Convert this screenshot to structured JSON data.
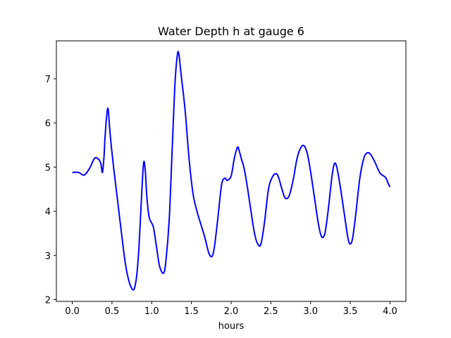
{
  "chart_data": {
    "type": "line",
    "title": "Water Depth h at gauge 6",
    "xlabel": "hours",
    "ylabel": "",
    "xlim": [
      -0.2,
      4.2
    ],
    "ylim": [
      1.96,
      7.86
    ],
    "xticks": [
      0.0,
      0.5,
      1.0,
      1.5,
      2.0,
      2.5,
      3.0,
      3.5,
      4.0
    ],
    "xtick_labels": [
      "0.0",
      "0.5",
      "1.0",
      "1.5",
      "2.0",
      "2.5",
      "3.0",
      "3.5",
      "4.0"
    ],
    "yticks": [
      2,
      3,
      4,
      5,
      6,
      7
    ],
    "ytick_labels": [
      "2",
      "3",
      "4",
      "5",
      "6",
      "7"
    ],
    "grid": false,
    "legend": "none",
    "series": [
      {
        "color": "#0000ff",
        "x": [
          0.0,
          0.08,
          0.15,
          0.22,
          0.28,
          0.33,
          0.36,
          0.38,
          0.4,
          0.41,
          0.43,
          0.45,
          0.47,
          0.49,
          0.52,
          0.57,
          0.62,
          0.67,
          0.72,
          0.77,
          0.8,
          0.82,
          0.84,
          0.86,
          0.88,
          0.9,
          0.92,
          0.94,
          0.97,
          1.02,
          1.06,
          1.1,
          1.15,
          1.18,
          1.22,
          1.26,
          1.29,
          1.32,
          1.34,
          1.37,
          1.42,
          1.47,
          1.52,
          1.57,
          1.62,
          1.67,
          1.72,
          1.76,
          1.79,
          1.83,
          1.88,
          1.92,
          1.95,
          2.0,
          2.04,
          2.08,
          2.1,
          2.13,
          2.16,
          2.2,
          2.25,
          2.3,
          2.35,
          2.38,
          2.42,
          2.47,
          2.52,
          2.57,
          2.6,
          2.64,
          2.68,
          2.73,
          2.78,
          2.83,
          2.88,
          2.92,
          2.96,
          3.0,
          3.05,
          3.1,
          3.14,
          3.18,
          3.22,
          3.27,
          3.3,
          3.33,
          3.37,
          3.42,
          3.47,
          3.5,
          3.53,
          3.57,
          3.62,
          3.67,
          3.71,
          3.75,
          3.8,
          3.85,
          3.88,
          3.92,
          3.95,
          3.98,
          4.0
        ],
        "y": [
          4.88,
          4.88,
          4.82,
          4.98,
          5.2,
          5.18,
          5.08,
          4.88,
          5.25,
          5.6,
          6.1,
          6.33,
          5.9,
          5.5,
          5.0,
          4.25,
          3.5,
          2.8,
          2.38,
          2.22,
          2.4,
          2.7,
          3.2,
          3.9,
          4.6,
          5.12,
          4.9,
          4.3,
          3.85,
          3.65,
          3.2,
          2.75,
          2.6,
          2.9,
          3.8,
          5.5,
          6.8,
          7.5,
          7.58,
          7.1,
          6.3,
          5.2,
          4.4,
          4.0,
          3.7,
          3.4,
          3.05,
          2.98,
          3.2,
          3.8,
          4.6,
          4.75,
          4.7,
          4.8,
          5.2,
          5.45,
          5.38,
          5.18,
          5.0,
          4.6,
          4.0,
          3.45,
          3.22,
          3.3,
          3.75,
          4.5,
          4.78,
          4.85,
          4.75,
          4.5,
          4.3,
          4.35,
          4.7,
          5.2,
          5.45,
          5.48,
          5.3,
          4.9,
          4.3,
          3.7,
          3.42,
          3.5,
          4.0,
          4.8,
          5.08,
          5.0,
          4.6,
          4.0,
          3.4,
          3.26,
          3.4,
          3.95,
          4.75,
          5.2,
          5.32,
          5.3,
          5.15,
          4.95,
          4.85,
          4.8,
          4.75,
          4.62,
          4.55
        ]
      }
    ]
  }
}
